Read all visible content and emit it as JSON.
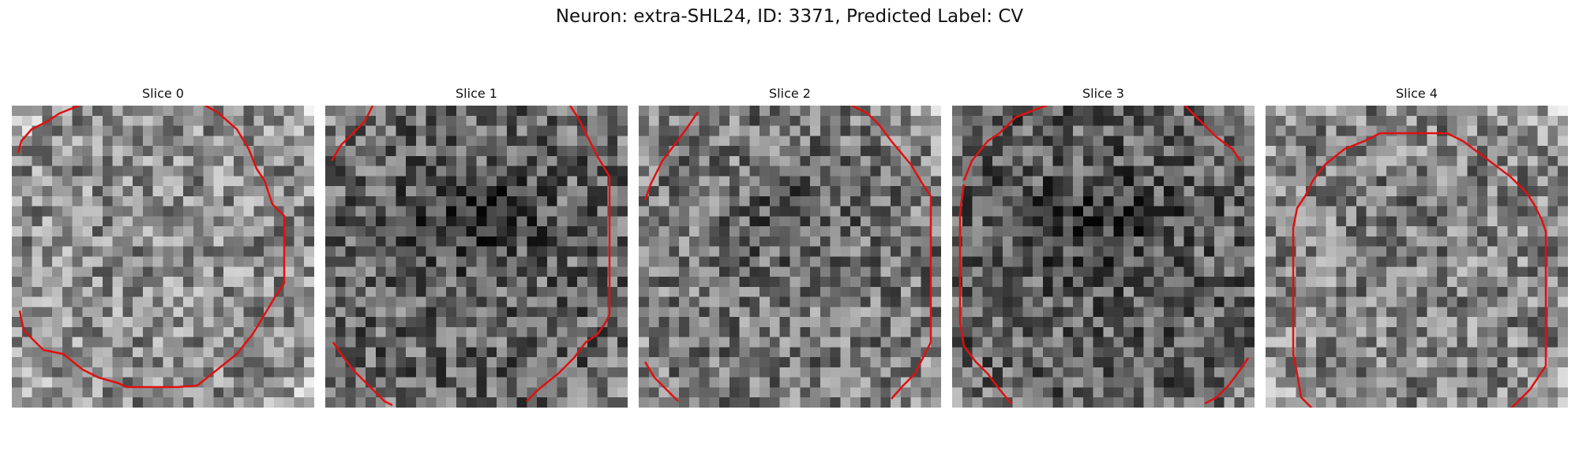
{
  "figure": {
    "title": "Neuron: extra-SHL24, ID: 3371, Predicted Label: CV"
  },
  "panels": [
    {
      "title": "Slice 0",
      "seed": 11,
      "tone": 0.55,
      "blob": 0.0,
      "contour_color": "#e01010"
    },
    {
      "title": "Slice 1",
      "seed": 23,
      "tone": 0.4,
      "blob": 0.22,
      "contour_color": "#e01010"
    },
    {
      "title": "Slice 2",
      "seed": 37,
      "tone": 0.47,
      "blob": 0.15,
      "contour_color": "#e01010"
    },
    {
      "title": "Slice 3",
      "seed": 53,
      "tone": 0.38,
      "blob": 0.2,
      "contour_color": "#e01010"
    },
    {
      "title": "Slice 4",
      "seed": 71,
      "tone": 0.52,
      "blob": 0.05,
      "contour_color": "#e01010"
    }
  ]
}
